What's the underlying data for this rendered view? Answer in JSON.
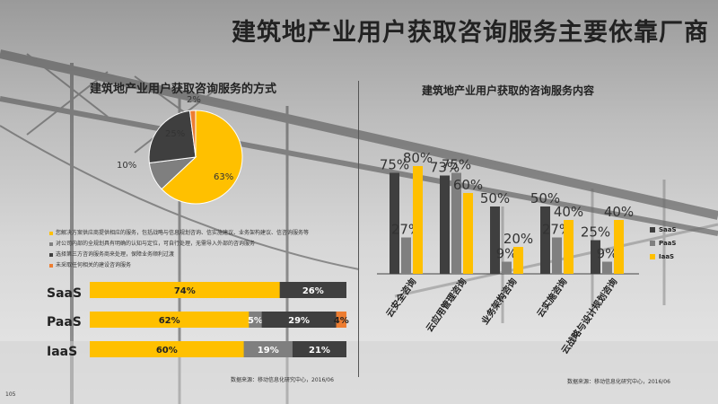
{
  "title": "建筑地产业用户获取咨询服务主要依靠厂商",
  "colors": {
    "yellow": "#FFC000",
    "dark": "#3f3f3f",
    "gray": "#7f7f7f",
    "orange": "#ED7D31"
  },
  "chart_data": [
    {
      "type": "pie",
      "title": "建筑地产业用户获取咨询服务的方式",
      "slices": [
        {
          "label": "63%",
          "value": 63,
          "color": "#FFC000",
          "legend": "您解决方案供应商提供相应的服务，包括战略与信息规划咨询、信实施建议、业务架构建议、信咨询服务等"
        },
        {
          "label": "10%",
          "value": 10,
          "color": "#7f7f7f",
          "legend": "对公司内部的全规划具有明确的认知与定位，可自行处理，无需导入外部的咨询服务"
        },
        {
          "label": "25%",
          "value": 25,
          "color": "#3f3f3f",
          "legend": "选择第三方咨询服务商来处理，保障业务顺利过渡"
        },
        {
          "label": "2%",
          "value": 2,
          "color": "#ED7D31",
          "legend": "未采取任何相关的建设咨询服务"
        }
      ]
    },
    {
      "type": "bar",
      "stacked": true,
      "orientation": "horizontal",
      "categories": [
        "SaaS",
        "PaaS",
        "IaaS"
      ],
      "rows": [
        {
          "name": "SaaS",
          "segments": [
            {
              "value": 74,
              "label": "74%",
              "color": "#FFC000"
            },
            {
              "value": 26,
              "label": "26%",
              "color": "#3f3f3f"
            }
          ]
        },
        {
          "name": "PaaS",
          "segments": [
            {
              "value": 62,
              "label": "62%",
              "color": "#FFC000"
            },
            {
              "value": 5,
              "label": "5%",
              "color": "#7f7f7f"
            },
            {
              "value": 29,
              "label": "29%",
              "color": "#3f3f3f"
            },
            {
              "value": 4,
              "label": "4%",
              "color": "#ED7D31"
            }
          ]
        },
        {
          "name": "IaaS",
          "segments": [
            {
              "value": 60,
              "label": "60%",
              "color": "#FFC000"
            },
            {
              "value": 19,
              "label": "19%",
              "color": "#7f7f7f"
            },
            {
              "value": 21,
              "label": "21%",
              "color": "#3f3f3f"
            }
          ]
        }
      ],
      "source": "数据来源：移动信息化研究中心，2016/06"
    },
    {
      "type": "bar",
      "title": "建筑地产业用户获取的咨询服务内容",
      "categories": [
        "云安全咨询",
        "云应用管理咨询",
        "业务架构咨询",
        "云实施咨询",
        "云战略与设计规划咨询"
      ],
      "series": [
        {
          "name": "SaaS",
          "color": "#3f3f3f",
          "values": [
            75,
            73,
            50,
            50,
            25
          ]
        },
        {
          "name": "PaaS",
          "color": "#7f7f7f",
          "values": [
            27,
            75,
            9,
            27,
            9
          ]
        },
        {
          "name": "IaaS",
          "color": "#FFC000",
          "values": [
            80,
            60,
            20,
            40,
            40
          ]
        }
      ],
      "ylim": [
        0,
        100
      ],
      "source": "数据来源：移动信息化研究中心，2016/06"
    }
  ],
  "page_number": "105"
}
